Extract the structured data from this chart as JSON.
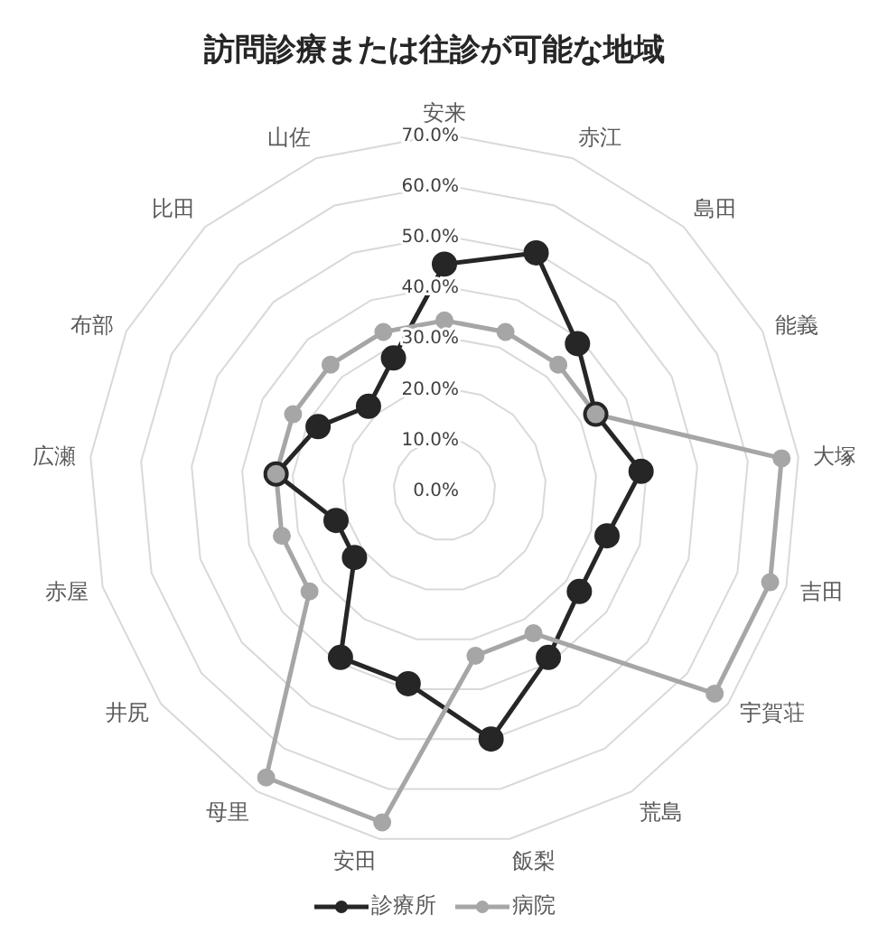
{
  "chart_data": {
    "type": "radar",
    "title": "訪問診療または往診が可能な地域",
    "categories": [
      "安来",
      "赤江",
      "島田",
      "能義",
      "大塚",
      "吉田",
      "宇賀荘",
      "荒島",
      "飯梨",
      "安田",
      "母里",
      "井尻",
      "赤屋",
      "広瀬",
      "布部",
      "比田",
      "山佐"
    ],
    "series": [
      {
        "name": "診療所",
        "color": "#262626",
        "values": [
          44.4,
          50.0,
          38.9,
          33.3,
          38.9,
          33.3,
          33.3,
          38.9,
          50.0,
          38.9,
          38.9,
          22.2,
          22.2,
          33.3,
          27.8,
          22.2,
          27.8
        ]
      },
      {
        "name": "病院",
        "color": "#a6a6a6",
        "values": [
          33.3,
          33.3,
          33.3,
          33.3,
          66.7,
          66.7,
          66.7,
          33.3,
          33.3,
          66.7,
          66.7,
          33.3,
          33.3,
          33.3,
          33.3,
          33.3,
          33.3
        ]
      }
    ],
    "ylim": [
      0,
      70
    ],
    "yticks": [
      {
        "value": 0,
        "label": "0.0%"
      },
      {
        "value": 10,
        "label": "10.0%"
      },
      {
        "value": 20,
        "label": "20.0%"
      },
      {
        "value": 30,
        "label": "30.0%"
      },
      {
        "value": 40,
        "label": "40.0%"
      },
      {
        "value": 50,
        "label": "50.0%"
      },
      {
        "value": 60,
        "label": "60.0%"
      },
      {
        "value": 70,
        "label": "70.0%"
      }
    ],
    "grid": true,
    "legend": "bottom",
    "marker": "circle",
    "line_style": "solid"
  }
}
